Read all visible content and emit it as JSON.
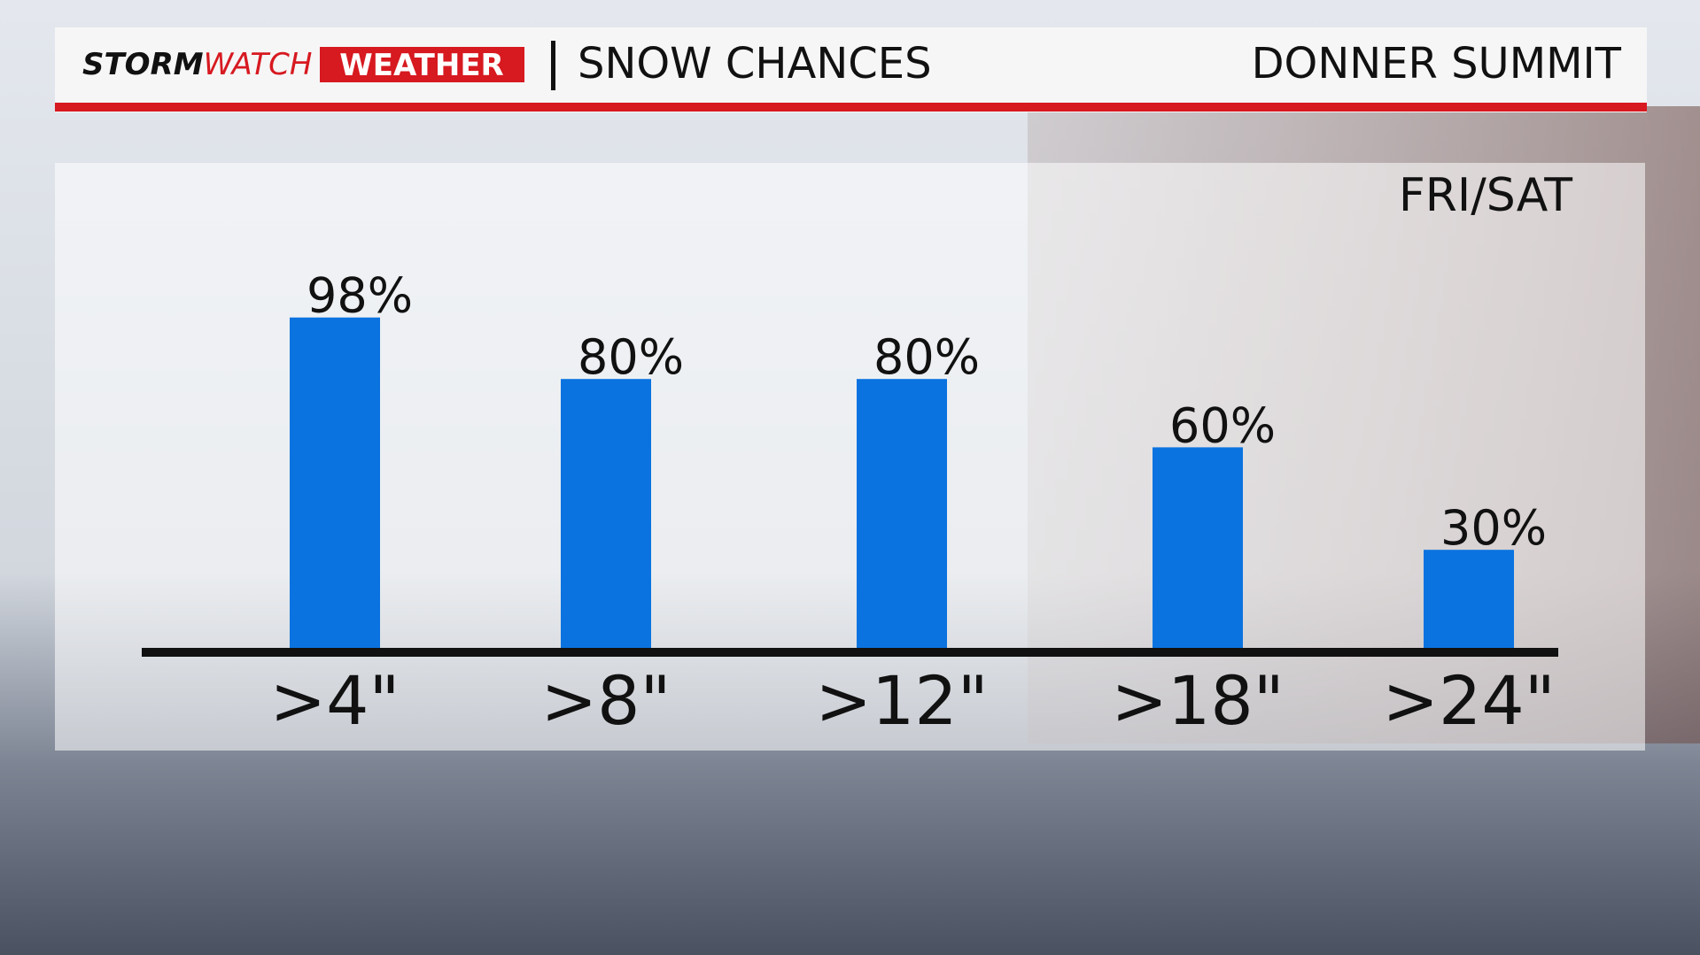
{
  "header": {
    "logo_storm": "STORM",
    "logo_watch": "WATCH",
    "logo_weather": "WEATHER",
    "title": "SNOW CHANCES",
    "location": "DONNER SUMMIT"
  },
  "chart_data": {
    "type": "bar",
    "subtitle": "FRI/SAT",
    "categories": [
      ">4\"",
      ">8\"",
      ">12\"",
      ">18\"",
      ">24\""
    ],
    "values": [
      98,
      80,
      80,
      60,
      30
    ],
    "value_labels": [
      "98%",
      "80%",
      "80%",
      "60%",
      "30%"
    ],
    "color": "#0a73e0"
  }
}
